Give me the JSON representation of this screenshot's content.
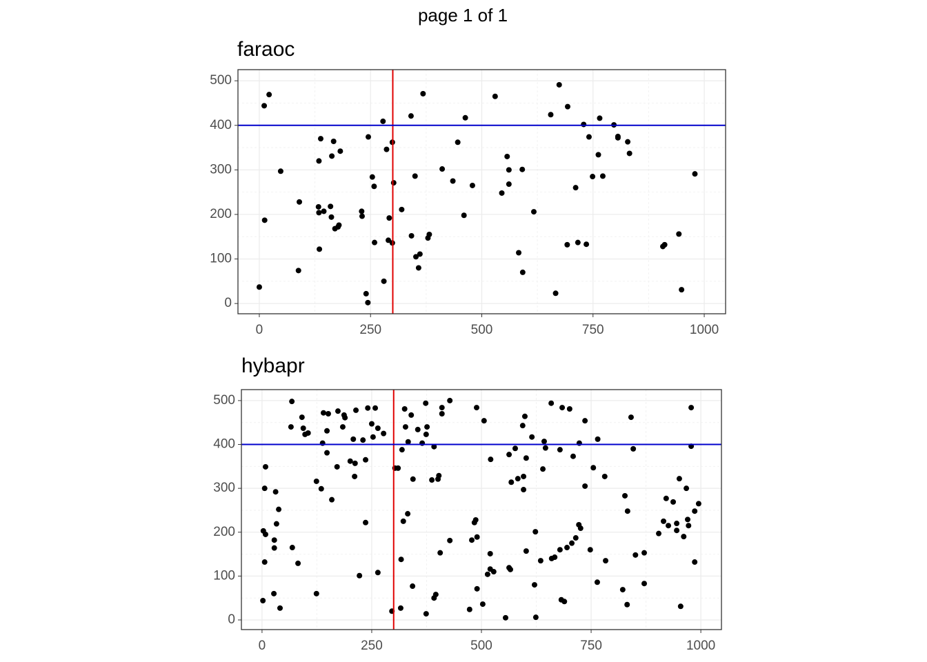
{
  "title": "page 1 of 1",
  "chart_data": [
    {
      "type": "scatter",
      "title": "faraoc",
      "color": "#000000",
      "grid": true,
      "xlim": [
        -48,
        1048
      ],
      "ylim": [
        -23,
        525
      ],
      "xticks": [
        0,
        250,
        500,
        750,
        1000
      ],
      "yticks": [
        0,
        100,
        200,
        300,
        400,
        500
      ],
      "vline": {
        "value": 300,
        "color": "#e00000"
      },
      "hline": {
        "value": 400,
        "color": "#0000cc"
      },
      "x": [
        0,
        11,
        22,
        12,
        48,
        90,
        88,
        133,
        134,
        145,
        134,
        138,
        135,
        160,
        162,
        163,
        167,
        170,
        177,
        179,
        182,
        230,
        231,
        240,
        244,
        245,
        254,
        258,
        259,
        278,
        280,
        286,
        290,
        292,
        299,
        299,
        302,
        320,
        341,
        342,
        350,
        352,
        358,
        361,
        368,
        379,
        382,
        411,
        435,
        446,
        463,
        460,
        479,
        530,
        545,
        557,
        561,
        561,
        583,
        591,
        592,
        617,
        655,
        666,
        674,
        693,
        692,
        711,
        716,
        729,
        735,
        741,
        749,
        762,
        765,
        772,
        797,
        806,
        806,
        828,
        832,
        907,
        911,
        943,
        949,
        979
      ],
      "y": [
        37,
        444,
        469,
        187,
        297,
        228,
        74,
        217,
        204,
        207,
        320,
        370,
        122,
        218,
        194,
        331,
        364,
        168,
        172,
        176,
        342,
        207,
        196,
        22,
        2,
        374,
        284,
        263,
        137,
        409,
        50,
        346,
        142,
        192,
        362,
        136,
        271,
        211,
        421,
        152,
        286,
        105,
        80,
        111,
        471,
        147,
        155,
        302,
        275,
        362,
        417,
        198,
        265,
        465,
        248,
        330,
        300,
        268,
        114,
        301,
        70,
        206,
        424,
        23,
        491,
        442,
        132,
        260,
        137,
        402,
        133,
        374,
        285,
        334,
        416,
        286,
        401,
        375,
        372,
        363,
        337,
        128,
        132,
        156,
        31,
        291
      ]
    },
    {
      "type": "scatter",
      "title": "hybapr",
      "color": "#000000",
      "grid": true,
      "xlim": [
        -47,
        1047
      ],
      "ylim": [
        -22,
        525
      ],
      "xticks": [
        0,
        250,
        500,
        750,
        1000
      ],
      "yticks": [
        0,
        100,
        200,
        300,
        400,
        500
      ],
      "vline": {
        "value": 300,
        "color": "#e00000"
      },
      "hline": {
        "value": 400,
        "color": "#0000cc"
      },
      "x": [
        2,
        3,
        8,
        6,
        8,
        6,
        28,
        28,
        31,
        33,
        38,
        27,
        41,
        69,
        66,
        68,
        82,
        91,
        94,
        98,
        105,
        124,
        124,
        135,
        138,
        140,
        148,
        148,
        151,
        159,
        171,
        173,
        184,
        187,
        189,
        201,
        208,
        211,
        212,
        214,
        222,
        230,
        236,
        236,
        241,
        250,
        253,
        258,
        264,
        264,
        277,
        296,
        303,
        310,
        316,
        317,
        319,
        322,
        325,
        327,
        332,
        333,
        340,
        343,
        344,
        355,
        365,
        373,
        374,
        376,
        374,
        387,
        392,
        392,
        396,
        401,
        403,
        406,
        410,
        410,
        428,
        428,
        473,
        478,
        484,
        487,
        490,
        489,
        490,
        503,
        506,
        514,
        520,
        521,
        520,
        528,
        555,
        563,
        566,
        563,
        568,
        577,
        583,
        594,
        596,
        596,
        599,
        602,
        602,
        615,
        621,
        623,
        624,
        635,
        640,
        643,
        646,
        659,
        660,
        667,
        679,
        679,
        684,
        682,
        689,
        695,
        701,
        706,
        709,
        715,
        722,
        723,
        726,
        736,
        736,
        748,
        755,
        764,
        765,
        781,
        783,
        822,
        827,
        832,
        833,
        841,
        846,
        851,
        871,
        871,
        904,
        915,
        921,
        926,
        937,
        945,
        945,
        951,
        954,
        961,
        967,
        970,
        972,
        978,
        978,
        986,
        986,
        995
      ],
      "y": [
        44,
        203,
        195,
        300,
        349,
        132,
        164,
        182,
        292,
        219,
        252,
        60,
        27,
        165,
        440,
        498,
        129,
        462,
        437,
        423,
        426,
        316,
        60,
        299,
        403,
        472,
        381,
        431,
        470,
        274,
        349,
        476,
        440,
        467,
        461,
        362,
        412,
        327,
        357,
        478,
        101,
        410,
        222,
        365,
        483,
        447,
        417,
        483,
        108,
        437,
        425,
        20,
        346,
        346,
        27,
        138,
        388,
        225,
        481,
        440,
        242,
        406,
        467,
        77,
        321,
        434,
        403,
        494,
        423,
        440,
        14,
        319,
        395,
        50,
        58,
        321,
        329,
        153,
        470,
        484,
        500,
        181,
        24,
        182,
        222,
        228,
        189,
        484,
        71,
        36,
        454,
        104,
        151,
        366,
        116,
        110,
        5,
        119,
        115,
        377,
        314,
        391,
        322,
        443,
        327,
        297,
        464,
        157,
        369,
        417,
        80,
        201,
        6,
        135,
        344,
        407,
        392,
        494,
        140,
        143,
        160,
        388,
        484,
        46,
        42,
        165,
        481,
        175,
        373,
        187,
        217,
        403,
        209,
        305,
        454,
        160,
        347,
        86,
        412,
        327,
        135,
        69,
        283,
        35,
        248,
        462,
        390,
        148,
        153,
        83,
        197,
        225,
        277,
        215,
        269,
        220,
        204,
        322,
        31,
        190,
        300,
        229,
        215,
        484,
        396,
        248,
        132,
        265
      ]
    }
  ]
}
